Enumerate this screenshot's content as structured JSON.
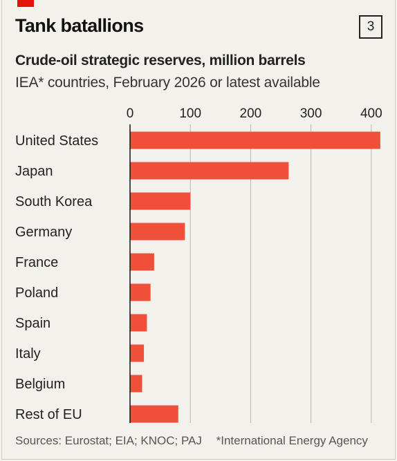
{
  "header": {
    "title": "Tank batallions",
    "badge": "3",
    "subtitle": "Crude-oil strategic reserves, million barrels",
    "subsubtitle": "IEA* countries, February 2026 or latest available"
  },
  "footer": {
    "sources": "Sources: Eurostat; EIA; KNOC; PAJ",
    "note": "*International Energy Agency"
  },
  "colors": {
    "bar": "#f0503a",
    "grid": "#b9b6b0",
    "accent": "#e3120b"
  },
  "chart_data": {
    "type": "bar",
    "orientation": "horizontal",
    "categories": [
      "United States",
      "Japan",
      "South Korea",
      "Germany",
      "France",
      "Poland",
      "Spain",
      "Italy",
      "Belgium",
      "Rest of EU"
    ],
    "values": [
      415,
      263,
      100,
      91,
      40,
      34,
      28,
      23,
      20,
      80
    ],
    "xticks": [
      0,
      100,
      200,
      300,
      400
    ],
    "xlim": [
      0,
      420
    ],
    "axis_position": "top",
    "grid": true
  }
}
